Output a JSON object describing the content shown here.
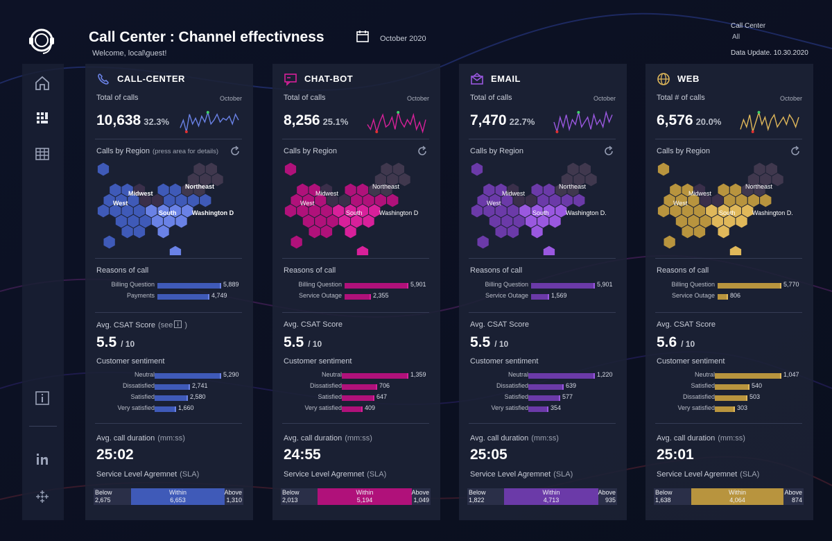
{
  "header": {
    "title": "Call Center : Channel effectivness",
    "month": "October 2020",
    "welcome": "Welcome, local\\guest!",
    "filter_label": "Call Center",
    "filter_value": "All",
    "data_update": "Data Update. 10.30.2020"
  },
  "sidebar": {
    "items": [
      "home-icon",
      "dashboard-icon",
      "table-icon",
      "info-icon",
      "linkedin-icon",
      "tableau-icon"
    ]
  },
  "colors": {
    "callcenter": "#3f5ab8",
    "chatbot": "#b0117a",
    "email": "#6b3aa8",
    "web": "#b8943e"
  },
  "panels": [
    {
      "name": "CALL-CENTER",
      "icon": "phone-icon",
      "color": "#3f5ab8",
      "light": "#6a82e6",
      "total_label": "Total of calls",
      "month": "October",
      "total": "10,638",
      "pct": "32.3%",
      "region_label": "Calls by Region",
      "region_sub": "(press area for details)",
      "regions": {
        "west": "West",
        "midwest": "Midwest",
        "northeast": "Northeast",
        "south": "South",
        "wash": "Washington D"
      },
      "reasons_label": "Reasons of call",
      "reasons": [
        {
          "label": "Billing Question",
          "value": 5889,
          "text": "5,889"
        },
        {
          "label": "Payments",
          "value": 4749,
          "text": "4,749"
        }
      ],
      "csat_label": "Avg. CSAT Score",
      "csat_sub": "(see",
      "csat": "5.5",
      "csat_den": "/ 10",
      "sentiment_label": "Customer sentiment",
      "sentiment": [
        {
          "label": "Neutral",
          "value": 5290,
          "text": "5,290"
        },
        {
          "label": "Dissatisfied",
          "value": 2741,
          "text": "2,741"
        },
        {
          "label": "Satisfied",
          "value": 2580,
          "text": "2,580"
        },
        {
          "label": "Very satisfied",
          "value": 1660,
          "text": "1,660"
        }
      ],
      "duration_label": "Avg. call duration",
      "duration_sub": "(mm:ss)",
      "duration": "25:02",
      "sla_label": "Service Level Agremnet",
      "sla_sub": "(SLA)",
      "sla": {
        "below_label": "Below",
        "below": "2,675",
        "below_v": 2675,
        "within_label": "Within",
        "within": "6,653",
        "within_v": 6653,
        "above_label": "Above",
        "above": "1,310",
        "above_v": 1310
      },
      "spark": [
        5,
        9,
        3,
        12,
        7,
        10,
        6,
        11,
        8,
        13,
        7,
        9,
        12,
        8,
        10,
        9,
        11,
        7,
        12,
        9
      ]
    },
    {
      "name": "CHAT-BOT",
      "icon": "chat-icon",
      "color": "#b0117a",
      "light": "#d8209a",
      "total_label": "Total of calls",
      "month": "October",
      "total": "8,256",
      "pct": "25.1%",
      "region_label": "Calls by Region",
      "region_sub": "",
      "regions": {
        "west": "West",
        "midwest": "Midwest",
        "northeast": "Northeast",
        "south": "South",
        "wash": "Washington D"
      },
      "reasons_label": "Reasons of call",
      "reasons": [
        {
          "label": "Billing Question",
          "value": 5901,
          "text": "5,901"
        },
        {
          "label": "Service Outage",
          "value": 2355,
          "text": "2,355"
        }
      ],
      "csat_label": "Avg. CSAT Score",
      "csat_sub": "",
      "csat": "5.5",
      "csat_den": "/ 10",
      "sentiment_label": "Customer sentiment",
      "sentiment": [
        {
          "label": "Neutral",
          "value": 1359,
          "text": "1,359"
        },
        {
          "label": "Dissatisfied",
          "value": 706,
          "text": "706"
        },
        {
          "label": "Satisfied",
          "value": 647,
          "text": "647"
        },
        {
          "label": "Very satisfied",
          "value": 409,
          "text": "409"
        }
      ],
      "duration_label": "Avg. call duration",
      "duration_sub": "(mm:ss)",
      "duration": "24:55",
      "sla_label": "Service Level Agremnet",
      "sla_sub": "(SLA)",
      "sla": {
        "below_label": "Below",
        "below": "2,013",
        "below_v": 2013,
        "within_label": "Within",
        "within": "5,194",
        "within_v": 5194,
        "above_label": "Above",
        "above": "1,049",
        "above_v": 1049
      },
      "spark": [
        8,
        6,
        10,
        5,
        9,
        12,
        7,
        8,
        11,
        6,
        13,
        9,
        7,
        10,
        8,
        12,
        6,
        9,
        5,
        10
      ]
    },
    {
      "name": "EMAIL",
      "icon": "envelope-icon",
      "color": "#6b3aa8",
      "light": "#9a58e0",
      "total_label": "Total of calls",
      "month": "October",
      "total": "7,470",
      "pct": "22.7%",
      "region_label": "Calls by Region",
      "region_sub": "",
      "regions": {
        "west": "West",
        "midwest": "Midwest",
        "northeast": "Northeast",
        "south": "South",
        "wash": "Washington D."
      },
      "reasons_label": "Reasons of call",
      "reasons": [
        {
          "label": "Billing Question",
          "value": 5901,
          "text": "5,901"
        },
        {
          "label": "Service Outage",
          "value": 1569,
          "text": "1,569"
        }
      ],
      "csat_label": "Avg. CSAT Score",
      "csat_sub": "",
      "csat": "5.5",
      "csat_den": "/ 10",
      "sentiment_label": "Customer sentiment",
      "sentiment": [
        {
          "label": "Neutral",
          "value": 1220,
          "text": "1,220"
        },
        {
          "label": "Dissatisfied",
          "value": 639,
          "text": "639"
        },
        {
          "label": "Satisfied",
          "value": 577,
          "text": "577"
        },
        {
          "label": "Very satisfied",
          "value": 354,
          "text": "354"
        }
      ],
      "duration_label": "Avg. call duration",
      "duration_sub": "(mm:ss)",
      "duration": "25:05",
      "sla_label": "Service Level Agremnet",
      "sla_sub": "(SLA)",
      "sla": {
        "below_label": "Below",
        "below": "1,822",
        "below_v": 1822,
        "within_label": "Within",
        "within": "4,713",
        "within_v": 4713,
        "above_label": "Above",
        "above": "935",
        "above_v": 935
      },
      "spark": [
        9,
        5,
        11,
        7,
        12,
        6,
        10,
        8,
        13,
        7,
        9,
        11,
        6,
        12,
        8,
        10,
        7,
        13,
        9,
        12
      ]
    },
    {
      "name": "WEB",
      "icon": "globe-icon",
      "color": "#b8943e",
      "light": "#e0b85a",
      "total_label": "Total # of calls",
      "month": "October",
      "total": "6,576",
      "pct": "20.0%",
      "region_label": "Calls by Region",
      "region_sub": "",
      "regions": {
        "west": "West",
        "midwest": "Midwest",
        "northeast": "Northeast",
        "south": "South",
        "wash": "Washington D."
      },
      "reasons_label": "Reasons of call",
      "reasons": [
        {
          "label": "Billing Question",
          "value": 5770,
          "text": "5,770"
        },
        {
          "label": "Service Outage",
          "value": 806,
          "text": "806"
        }
      ],
      "csat_label": "Avg. CSAT Score",
      "csat_sub": "",
      "csat": "5.6",
      "csat_den": "/ 10",
      "sentiment_label": "Customer sentiment",
      "sentiment": [
        {
          "label": "Neutral",
          "value": 1047,
          "text": "1,047"
        },
        {
          "label": "Satisfied",
          "value": 540,
          "text": "540"
        },
        {
          "label": "Dissatisfied",
          "value": 503,
          "text": "503"
        },
        {
          "label": "Very satisfied",
          "value": 303,
          "text": "303"
        }
      ],
      "duration_label": "Avg. call duration",
      "duration_sub": "(mm:ss)",
      "duration": "25:01",
      "sla_label": "Service Level Agremnet",
      "sla_sub": "(SLA)",
      "sla": {
        "below_label": "Below",
        "below": "1,638",
        "below_v": 1638,
        "within_label": "Within",
        "within": "4,064",
        "within_v": 4064,
        "above_label": "Above",
        "above": "874",
        "above_v": 874
      },
      "spark": [
        6,
        10,
        7,
        12,
        5,
        9,
        13,
        8,
        11,
        6,
        10,
        12,
        7,
        9,
        11,
        8,
        12,
        10,
        7,
        11
      ]
    }
  ]
}
